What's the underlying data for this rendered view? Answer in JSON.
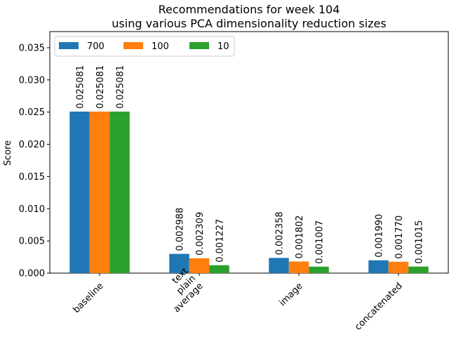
{
  "chart_data": {
    "type": "bar",
    "title": "Recommendations for week 104",
    "subtitle": "using various PCA dimensionality reduction sizes",
    "ylabel": "Score",
    "xlabel": "",
    "ylim": [
      0,
      0.0375
    ],
    "yticks": [
      "0.000",
      "0.005",
      "0.010",
      "0.015",
      "0.020",
      "0.025",
      "0.030",
      "0.035"
    ],
    "categories": [
      [
        "baseline"
      ],
      [
        "text",
        "plain",
        "average"
      ],
      [
        "image"
      ],
      [
        "concatenated"
      ]
    ],
    "series": [
      {
        "name": "700",
        "color": "#1f77b4",
        "values": [
          0.025081,
          0.002988,
          0.002358,
          0.00199
        ],
        "labels": [
          "0.025081",
          "0.002988",
          "0.002358",
          "0.001990"
        ]
      },
      {
        "name": "100",
        "color": "#ff7f0e",
        "values": [
          0.025081,
          0.002309,
          0.001802,
          0.00177
        ],
        "labels": [
          "0.025081",
          "0.002309",
          "0.001802",
          "0.001770"
        ]
      },
      {
        "name": "10",
        "color": "#2ca02c",
        "values": [
          0.025081,
          0.001227,
          0.001007,
          0.001015
        ],
        "labels": [
          "0.025081",
          "0.001227",
          "0.001007",
          "0.001015"
        ]
      }
    ],
    "legend": "top-left",
    "grid": false
  }
}
